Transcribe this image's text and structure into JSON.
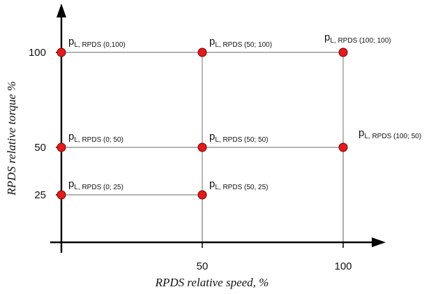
{
  "colors": {
    "point_fill": "#e31b1b",
    "point_stroke": "#7a0000",
    "axis": "#000000",
    "grid": "#888888"
  },
  "diagram": {
    "x_axis": {
      "title": "RPDS relative speed, %",
      "ticks": [
        {
          "value": 50,
          "label": "50"
        },
        {
          "value": 100,
          "label": "100"
        }
      ]
    },
    "y_axis": {
      "title": "RPDS relative torque %",
      "ticks": [
        {
          "value": 25,
          "label": "25"
        },
        {
          "value": 50,
          "label": "50"
        },
        {
          "value": 100,
          "label": "100"
        }
      ]
    },
    "horizontal_lines": [
      {
        "y": 100,
        "x_from": 0,
        "x_to": 100
      },
      {
        "y": 50,
        "x_from": 0,
        "x_to": 100
      },
      {
        "y": 25,
        "x_from": 0,
        "x_to": 50
      }
    ],
    "vertical_lines": [
      {
        "x": 50,
        "y_from": 25,
        "y_to": 100
      },
      {
        "x": 100,
        "y_from": 50,
        "y_to": 100
      }
    ],
    "points": [
      {
        "speed": 0,
        "torque": 100,
        "symbol": "p",
        "subscript": "L, RPDS (0,100)"
      },
      {
        "speed": 50,
        "torque": 100,
        "symbol": "p",
        "subscript": "L, RPDS (50; 100)"
      },
      {
        "speed": 100,
        "torque": 100,
        "symbol": "p",
        "subscript": "L, RPDS (100; 100)"
      },
      {
        "speed": 0,
        "torque": 50,
        "symbol": "p",
        "subscript": "L, RPDS (0; 50)"
      },
      {
        "speed": 50,
        "torque": 50,
        "symbol": "p",
        "subscript": "L, RPDS (50; 50)"
      },
      {
        "speed": 100,
        "torque": 50,
        "symbol": "p",
        "subscript": "L, RPDS (100; 50)"
      },
      {
        "speed": 0,
        "torque": 25,
        "symbol": "p",
        "subscript": "L, RPDS (0; 25)"
      },
      {
        "speed": 50,
        "torque": 25,
        "symbol": "p",
        "subscript": "L, RPDS (50, 25)"
      }
    ]
  }
}
